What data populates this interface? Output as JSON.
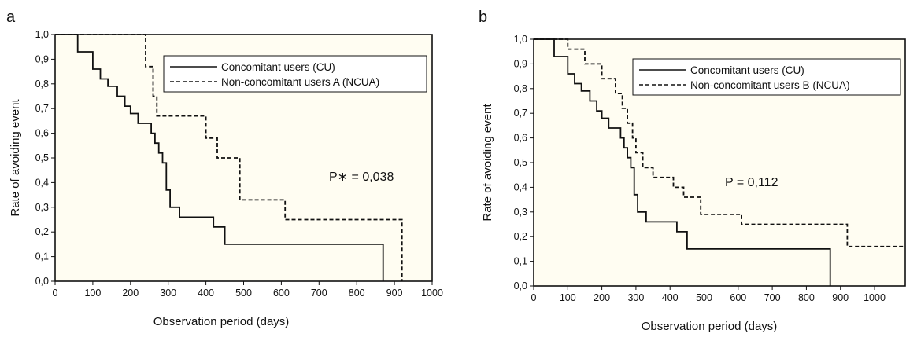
{
  "chart_data": [
    {
      "panel": "a",
      "type": "line",
      "subtype": "kaplan-meier step",
      "xlabel": "Observation period (days)",
      "ylabel": "Rate of avoiding event",
      "xlim": [
        0,
        1000
      ],
      "ylim": [
        0,
        1.0
      ],
      "x_ticks": [
        0,
        100,
        200,
        300,
        400,
        500,
        600,
        700,
        800,
        900,
        1000
      ],
      "y_ticks": [
        0.0,
        0.1,
        0.2,
        0.3,
        0.4,
        0.5,
        0.6,
        0.7,
        0.8,
        0.9,
        1.0
      ],
      "x_tick_labels": [
        "0",
        "100",
        "200",
        "300",
        "400",
        "500",
        "600",
        "700",
        "800",
        "900",
        "1000"
      ],
      "y_tick_labels": [
        "0,0",
        "0,1",
        "0,2",
        "0,3",
        "0,4",
        "0,5",
        "0,6",
        "0,7",
        "0,8",
        "0,9",
        "1,0"
      ],
      "grid": false,
      "background": "#fffdf2",
      "legend_position": "top-right",
      "annotation": "P∗ = 0,038",
      "series": [
        {
          "name": "Concomitant users (CU)",
          "style": "solid",
          "color": "#111111",
          "steps": [
            [
              0,
              1.0
            ],
            [
              60,
              0.93
            ],
            [
              100,
              0.86
            ],
            [
              120,
              0.82
            ],
            [
              140,
              0.79
            ],
            [
              165,
              0.75
            ],
            [
              185,
              0.71
            ],
            [
              200,
              0.68
            ],
            [
              220,
              0.64
            ],
            [
              255,
              0.6
            ],
            [
              265,
              0.56
            ],
            [
              275,
              0.52
            ],
            [
              285,
              0.48
            ],
            [
              295,
              0.37
            ],
            [
              305,
              0.3
            ],
            [
              330,
              0.26
            ],
            [
              420,
              0.22
            ],
            [
              450,
              0.15
            ],
            [
              870,
              0.0
            ]
          ]
        },
        {
          "name": "Non-concomitant users A (NCUA)",
          "style": "dashed",
          "color": "#111111",
          "steps": [
            [
              0,
              1.0
            ],
            [
              240,
              0.87
            ],
            [
              260,
              0.75
            ],
            [
              270,
              0.67
            ],
            [
              400,
              0.58
            ],
            [
              430,
              0.5
            ],
            [
              490,
              0.33
            ],
            [
              610,
              0.25
            ],
            [
              920,
              0.0
            ]
          ]
        }
      ]
    },
    {
      "panel": "b",
      "type": "line",
      "subtype": "kaplan-meier step",
      "xlabel": "Observation period (days)",
      "ylabel": "Rate of avoiding event",
      "xlim": [
        0,
        1090
      ],
      "ylim": [
        0,
        1.0
      ],
      "x_ticks": [
        0,
        100,
        200,
        300,
        400,
        500,
        600,
        700,
        800,
        900,
        1000
      ],
      "y_ticks": [
        0.0,
        0.1,
        0.2,
        0.3,
        0.4,
        0.5,
        0.6,
        0.7,
        0.8,
        0.9,
        1.0
      ],
      "x_tick_labels": [
        "0",
        "100",
        "200",
        "300",
        "400",
        "500",
        "600",
        "700",
        "800",
        "900",
        "1000"
      ],
      "y_tick_labels": [
        "0,0",
        "0,1",
        "0,2",
        "0,3",
        "0,4",
        "0,5",
        "0,6",
        "0,7",
        "0,8",
        "0,9",
        "1,0"
      ],
      "grid": false,
      "background": "#fffdf2",
      "legend_position": "top-right",
      "annotation": "P = 0,112",
      "series": [
        {
          "name": "Concomitant users (CU)",
          "style": "solid",
          "color": "#111111",
          "steps": [
            [
              0,
              1.0
            ],
            [
              60,
              0.93
            ],
            [
              100,
              0.86
            ],
            [
              120,
              0.82
            ],
            [
              140,
              0.79
            ],
            [
              165,
              0.75
            ],
            [
              185,
              0.71
            ],
            [
              200,
              0.68
            ],
            [
              220,
              0.64
            ],
            [
              255,
              0.6
            ],
            [
              265,
              0.56
            ],
            [
              275,
              0.52
            ],
            [
              285,
              0.48
            ],
            [
              295,
              0.37
            ],
            [
              305,
              0.3
            ],
            [
              330,
              0.26
            ],
            [
              420,
              0.22
            ],
            [
              450,
              0.15
            ],
            [
              870,
              0.0
            ]
          ]
        },
        {
          "name": "Non-concomitant users B (NCUA)",
          "style": "dashed",
          "color": "#111111",
          "steps": [
            [
              0,
              1.0
            ],
            [
              100,
              0.96
            ],
            [
              150,
              0.9
            ],
            [
              200,
              0.84
            ],
            [
              240,
              0.78
            ],
            [
              260,
              0.72
            ],
            [
              275,
              0.66
            ],
            [
              290,
              0.6
            ],
            [
              300,
              0.54
            ],
            [
              320,
              0.48
            ],
            [
              350,
              0.44
            ],
            [
              410,
              0.4
            ],
            [
              440,
              0.36
            ],
            [
              490,
              0.29
            ],
            [
              610,
              0.25
            ],
            [
              920,
              0.16
            ]
          ]
        }
      ]
    }
  ]
}
